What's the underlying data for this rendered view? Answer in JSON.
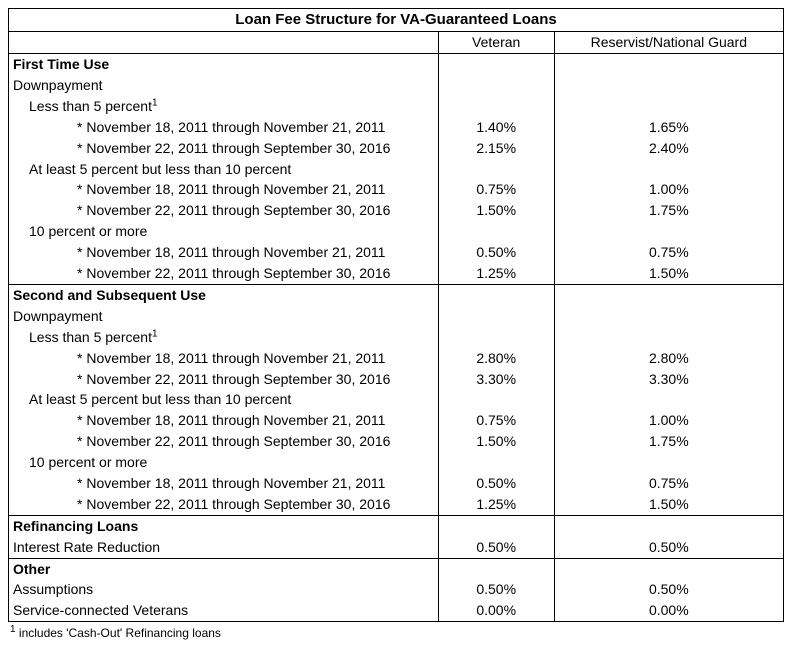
{
  "title": "Loan Fee Structure for VA-Guaranteed Loans",
  "cols": {
    "veteran": "Veteran",
    "reservist": "Reservist/National Guard"
  },
  "s1": {
    "header": "First Time Use",
    "sub": "Downpayment",
    "g1": {
      "label": "Less than 5 percent",
      "r1": {
        "d": "* November 18, 2011 through November 21, 2011",
        "v": "1.40%",
        "r": "1.65%"
      },
      "r2": {
        "d": "* November 22, 2011 through September 30, 2016",
        "v": "2.15%",
        "r": "2.40%"
      }
    },
    "g2": {
      "label": "At least 5 percent but less than 10 percent",
      "r1": {
        "d": "* November 18, 2011 through November 21, 2011",
        "v": "0.75%",
        "r": "1.00%"
      },
      "r2": {
        "d": "* November 22, 2011 through September 30, 2016",
        "v": "1.50%",
        "r": "1.75%"
      }
    },
    "g3": {
      "label": "10 percent or more",
      "r1": {
        "d": "* November 18, 2011 through November 21, 2011",
        "v": "0.50%",
        "r": "0.75%"
      },
      "r2": {
        "d": "* November 22, 2011 through September 30, 2016",
        "v": "1.25%",
        "r": "1.50%"
      }
    }
  },
  "s2": {
    "header": "Second and Subsequent Use",
    "sub": "Downpayment",
    "g1": {
      "label": "Less than 5 percent",
      "r1": {
        "d": "* November 18, 2011 through November 21, 2011",
        "v": "2.80%",
        "r": "2.80%"
      },
      "r2": {
        "d": "* November 22, 2011 through September 30, 2016",
        "v": "3.30%",
        "r": "3.30%"
      }
    },
    "g2": {
      "label": "At least 5 percent but less than 10 percent",
      "r1": {
        "d": "* November 18, 2011 through November 21, 2011",
        "v": "0.75%",
        "r": "1.00%"
      },
      "r2": {
        "d": "* November 22, 2011 through September 30, 2016",
        "v": "1.50%",
        "r": "1.75%"
      }
    },
    "g3": {
      "label": "10 percent or more",
      "r1": {
        "d": "* November 18, 2011 through November 21, 2011",
        "v": "0.50%",
        "r": "0.75%"
      },
      "r2": {
        "d": "* November 22, 2011 through September 30, 2016",
        "v": "1.25%",
        "r": "1.50%"
      }
    }
  },
  "s3": {
    "header": "Refinancing Loans",
    "r1": {
      "d": "Interest Rate Reduction",
      "v": "0.50%",
      "r": "0.50%"
    }
  },
  "s4": {
    "header": "Other",
    "r1": {
      "d": "Assumptions",
      "v": "0.50%",
      "r": "0.50%"
    },
    "r2": {
      "d": "Service-connected Veterans",
      "v": "0.00%",
      "r": "0.00%"
    }
  },
  "footnote": " includes 'Cash-Out' Refinancing loans"
}
